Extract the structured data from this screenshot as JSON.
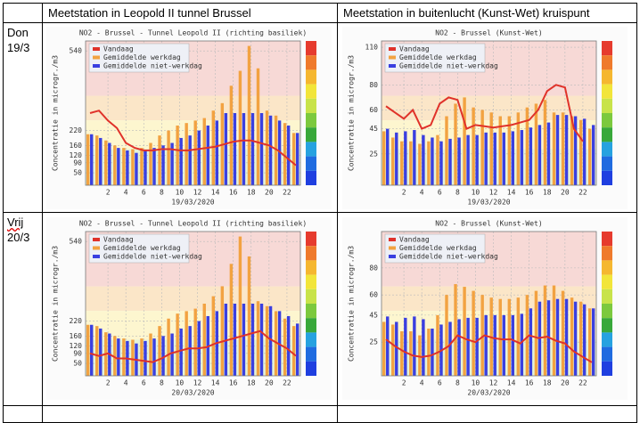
{
  "table": {
    "header": [
      "Meetstation in Leopold II tunnel Brussel",
      "Meetstation in buitenlucht (Kunst-Wet) kruispunt"
    ],
    "rows": [
      {
        "label": [
          "Don",
          "19/3"
        ]
      },
      {
        "label": [
          "Vrij",
          "20/3"
        ]
      }
    ]
  },
  "chart_data": [
    {
      "type": "bar",
      "title": "NO2 - Brussel - Tunnel Leopold II (richting basiliek)",
      "xlabel": "19/03/2020",
      "ylabel": "Concentratie in microgr./m3",
      "x": [
        0,
        1,
        2,
        3,
        4,
        5,
        6,
        7,
        8,
        9,
        10,
        11,
        12,
        13,
        14,
        15,
        16,
        17,
        18,
        19,
        20,
        21,
        22,
        23
      ],
      "xlim": [
        -0.5,
        23.5
      ],
      "xticks": [
        2,
        4,
        6,
        8,
        10,
        12,
        14,
        16,
        18,
        20,
        22
      ],
      "ylim": [
        0,
        580
      ],
      "yticks": [
        50,
        90,
        120,
        160,
        220,
        540
      ],
      "grid": true,
      "series": [
        {
          "name": "Vandaag",
          "type": "line",
          "color": "#e0322a",
          "values": [
            290,
            300,
            260,
            230,
            170,
            150,
            140,
            140,
            145,
            145,
            140,
            140,
            145,
            150,
            155,
            165,
            175,
            180,
            180,
            170,
            160,
            140,
            110,
            80
          ]
        },
        {
          "name": "Gemiddelde werkdag",
          "type": "bar",
          "color": "#f2a241",
          "values": [
            205,
            200,
            180,
            160,
            150,
            145,
            150,
            170,
            200,
            220,
            240,
            250,
            260,
            270,
            300,
            330,
            400,
            460,
            560,
            470,
            300,
            280,
            250,
            210
          ]
        },
        {
          "name": "Gemiddelde niet-werkdag",
          "type": "bar",
          "color": "#3a3fe0",
          "values": [
            205,
            190,
            170,
            150,
            140,
            130,
            140,
            150,
            160,
            170,
            190,
            200,
            220,
            240,
            260,
            290,
            290,
            290,
            290,
            290,
            280,
            260,
            240,
            210
          ]
        }
      ]
    },
    {
      "type": "bar",
      "title": "NO2 - Brussel (Kunst-Wet)",
      "xlabel": "19/03/2020",
      "ylabel": "Concentratie in microgr./m3",
      "x": [
        0,
        1,
        2,
        3,
        4,
        5,
        6,
        7,
        8,
        9,
        10,
        11,
        12,
        13,
        14,
        15,
        16,
        17,
        18,
        19,
        20,
        21,
        22,
        23
      ],
      "xlim": [
        -0.5,
        23.5
      ],
      "xticks": [
        2,
        4,
        6,
        8,
        10,
        12,
        14,
        16,
        18,
        20,
        22
      ],
      "ylim": [
        0,
        115
      ],
      "yticks": [
        25,
        45,
        60,
        80,
        110
      ],
      "grid": true,
      "series": [
        {
          "name": "Vandaag",
          "type": "line",
          "color": "#e0322a",
          "values": [
            63,
            58,
            53,
            60,
            45,
            48,
            65,
            70,
            68,
            45,
            48,
            47,
            46,
            47,
            48,
            50,
            52,
            60,
            75,
            80,
            78,
            45,
            35,
            null
          ]
        },
        {
          "name": "Gemiddelde werkdag",
          "type": "bar",
          "color": "#f2a241",
          "values": [
            43,
            38,
            35,
            35,
            33,
            35,
            40,
            55,
            65,
            70,
            62,
            60,
            58,
            55,
            55,
            58,
            62,
            65,
            68,
            58,
            58,
            55,
            52,
            45
          ]
        },
        {
          "name": "Gemiddelde niet-werkdag",
          "type": "bar",
          "color": "#3a3fe0",
          "values": [
            45,
            42,
            43,
            44,
            40,
            38,
            35,
            37,
            38,
            40,
            40,
            42,
            42,
            42,
            43,
            44,
            46,
            48,
            50,
            56,
            56,
            55,
            53,
            48
          ]
        }
      ]
    },
    {
      "type": "bar",
      "title": "NO2 - Brussel - Tunnel Leopold II (richting basiliek)",
      "xlabel": "20/03/2020",
      "ylabel": "Concentratie in microgr./m3",
      "x": [
        0,
        1,
        2,
        3,
        4,
        5,
        6,
        7,
        8,
        9,
        10,
        11,
        12,
        13,
        14,
        15,
        16,
        17,
        18,
        19,
        20,
        21,
        22,
        23
      ],
      "xlim": [
        -0.5,
        23.5
      ],
      "xticks": [
        2,
        4,
        6,
        8,
        10,
        12,
        14,
        16,
        18,
        20,
        22
      ],
      "ylim": [
        0,
        580
      ],
      "yticks": [
        50,
        90,
        120,
        160,
        220,
        540
      ],
      "grid": true,
      "series": [
        {
          "name": "Vandaag",
          "type": "line",
          "color": "#e0322a",
          "values": [
            90,
            80,
            90,
            70,
            70,
            65,
            60,
            55,
            70,
            90,
            100,
            110,
            110,
            115,
            130,
            140,
            150,
            160,
            170,
            180,
            150,
            130,
            110,
            80
          ]
        },
        {
          "name": "Gemiddelde werkdag",
          "type": "bar",
          "color": "#f2a241",
          "values": [
            205,
            200,
            175,
            160,
            150,
            145,
            150,
            170,
            200,
            230,
            250,
            260,
            270,
            290,
            320,
            360,
            450,
            560,
            480,
            300,
            280,
            260,
            230,
            200
          ]
        },
        {
          "name": "Gemiddelde niet-werkdag",
          "type": "bar",
          "color": "#3a3fe0",
          "values": [
            205,
            190,
            170,
            150,
            140,
            130,
            140,
            150,
            160,
            170,
            190,
            200,
            220,
            240,
            260,
            290,
            290,
            290,
            290,
            290,
            280,
            260,
            240,
            210
          ]
        }
      ]
    },
    {
      "type": "bar",
      "title": "NO2 - Brussel (Kunst-Wet)",
      "xlabel": "20/03/2020",
      "ylabel": "Concentratie in microgr./m3",
      "x": [
        0,
        1,
        2,
        3,
        4,
        5,
        6,
        7,
        8,
        9,
        10,
        11,
        12,
        13,
        14,
        15,
        16,
        17,
        18,
        19,
        20,
        21,
        22,
        23
      ],
      "xlim": [
        -0.5,
        23.5
      ],
      "xticks": [
        2,
        4,
        6,
        8,
        10,
        12,
        14,
        16,
        18,
        20,
        22
      ],
      "ylim": [
        0,
        107
      ],
      "yticks": [
        25,
        45,
        60,
        80
      ],
      "grid": true,
      "series": [
        {
          "name": "Vandaag",
          "type": "line",
          "color": "#e0322a",
          "values": [
            27,
            22,
            18,
            15,
            14,
            15,
            18,
            22,
            30,
            27,
            25,
            30,
            28,
            27,
            27,
            24,
            30,
            28,
            29,
            26,
            24,
            18,
            14,
            10
          ]
        },
        {
          "name": "Gemiddelde werkdag",
          "type": "bar",
          "color": "#f2a241",
          "values": [
            40,
            38,
            33,
            33,
            30,
            35,
            45,
            60,
            68,
            66,
            63,
            60,
            58,
            57,
            57,
            58,
            60,
            63,
            67,
            67,
            63,
            58,
            55,
            50
          ]
        },
        {
          "name": "Gemiddelde niet-werkdag",
          "type": "bar",
          "color": "#3a3fe0",
          "values": [
            44,
            40,
            43,
            44,
            42,
            35,
            38,
            40,
            42,
            43,
            43,
            45,
            45,
            45,
            45,
            46,
            50,
            55,
            56,
            57,
            57,
            55,
            53,
            50
          ]
        }
      ]
    }
  ]
}
